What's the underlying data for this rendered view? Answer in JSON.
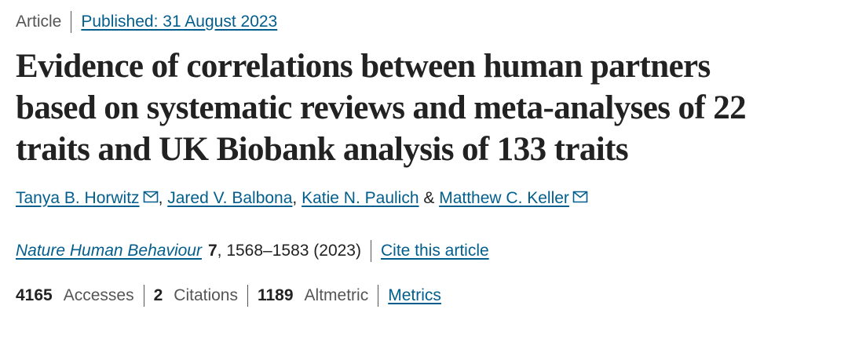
{
  "header": {
    "type": "Article",
    "published": "Published: 31 August 2023"
  },
  "title_lines": [
    "Evidence of correlations between human partners",
    "based on systematic reviews and meta-analyses of 22",
    "traits and UK Biobank analysis of 133 traits"
  ],
  "authors": [
    {
      "name": "Tanya B. Horwitz",
      "email": true,
      "after": ", "
    },
    {
      "name": "Jared V. Balbona",
      "email": false,
      "after": ", "
    },
    {
      "name": "Katie N. Paulich",
      "email": false,
      "after": " & "
    },
    {
      "name": "Matthew C. Keller",
      "email": true
    }
  ],
  "citation": {
    "journal": "Nature Human Behaviour",
    "volume": "7",
    "pages": ", 1568–1583 (2023)",
    "cite": "Cite this article"
  },
  "metrics": [
    {
      "value": "4165",
      "label": "Accesses"
    },
    {
      "value": "2",
      "label": "Citations"
    },
    {
      "value": "1189",
      "label": "Altmetric"
    }
  ],
  "metrics_link": "Metrics"
}
